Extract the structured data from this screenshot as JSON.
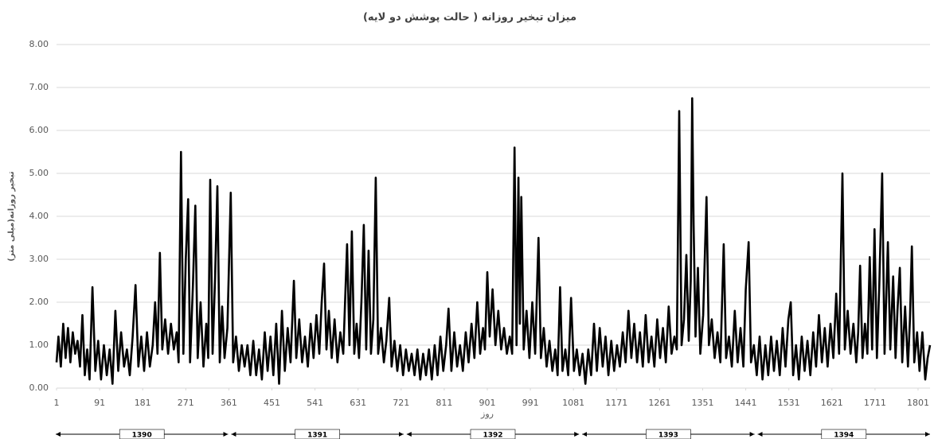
{
  "chart_data": {
    "type": "line",
    "title": "میزان تبخیر روزانه ( حالت پوشش دو لایه)",
    "x_label": "روز",
    "y_label": "تبخیر روزانه(میلی متر)",
    "years": [
      "1390",
      "1391",
      "1392",
      "1393",
      "1394"
    ],
    "color": "#000000",
    "grid": true,
    "xlim": [
      1,
      1826
    ],
    "ylim": [
      0,
      8
    ],
    "xticks": [
      1,
      91,
      181,
      271,
      361,
      451,
      541,
      631,
      721,
      811,
      901,
      991,
      1081,
      1171,
      1261,
      1351,
      1441,
      1531,
      1621,
      1711,
      1801
    ],
    "yticks": [
      {
        "value": 0,
        "label": "0.00"
      },
      {
        "value": 1,
        "label": "1.00"
      },
      {
        "value": 2,
        "label": "2.00"
      },
      {
        "value": 3,
        "label": "3.00"
      },
      {
        "value": 4,
        "label": "4.00"
      },
      {
        "value": 5,
        "label": "5.00"
      },
      {
        "value": 6,
        "label": "6.00"
      },
      {
        "value": 7,
        "label": "7.00"
      },
      {
        "value": 8,
        "label": "8.00"
      }
    ],
    "x": [
      1,
      5,
      10,
      15,
      20,
      25,
      30,
      35,
      40,
      45,
      50,
      55,
      60,
      65,
      70,
      76,
      82,
      88,
      94,
      100,
      106,
      112,
      118,
      124,
      130,
      136,
      142,
      148,
      154,
      160,
      166,
      172,
      178,
      184,
      190,
      196,
      202,
      207,
      212,
      217,
      222,
      228,
      234,
      240,
      246,
      252,
      256,
      261,
      266,
      271,
      276,
      280,
      286,
      291,
      296,
      302,
      308,
      314,
      318,
      322,
      327,
      332,
      337,
      342,
      347,
      352,
      358,
      365,
      370,
      376,
      382,
      388,
      394,
      400,
      406,
      412,
      418,
      424,
      430,
      436,
      442,
      448,
      454,
      460,
      466,
      472,
      478,
      484,
      490,
      497,
      502,
      508,
      514,
      520,
      526,
      532,
      538,
      544,
      550,
      555,
      560,
      565,
      570,
      576,
      582,
      588,
      594,
      600,
      608,
      613,
      618,
      623,
      628,
      633,
      638,
      643,
      648,
      653,
      658,
      663,
      668,
      673,
      679,
      685,
      690,
      696,
      701,
      707,
      713,
      719,
      725,
      731,
      737,
      743,
      749,
      755,
      761,
      767,
      773,
      779,
      785,
      791,
      797,
      803,
      809,
      815,
      820,
      826,
      832,
      838,
      844,
      850,
      856,
      862,
      868,
      874,
      880,
      886,
      892,
      896,
      901,
      906,
      912,
      918,
      924,
      930,
      936,
      942,
      948,
      953,
      958,
      962,
      966,
      969,
      972,
      977,
      983,
      989,
      995,
      1001,
      1008,
      1013,
      1019,
      1025,
      1031,
      1037,
      1043,
      1048,
      1053,
      1058,
      1064,
      1070,
      1076,
      1082,
      1088,
      1094,
      1100,
      1106,
      1112,
      1118,
      1124,
      1130,
      1136,
      1142,
      1148,
      1154,
      1160,
      1166,
      1172,
      1178,
      1184,
      1190,
      1196,
      1202,
      1208,
      1214,
      1220,
      1226,
      1232,
      1238,
      1244,
      1250,
      1256,
      1262,
      1268,
      1274,
      1280,
      1286,
      1292,
      1297,
      1302,
      1307,
      1312,
      1317,
      1322,
      1326,
      1329,
      1332,
      1336,
      1341,
      1346,
      1352,
      1359,
      1364,
      1370,
      1376,
      1382,
      1388,
      1395,
      1400,
      1406,
      1412,
      1418,
      1424,
      1430,
      1436,
      1441,
      1447,
      1452,
      1458,
      1464,
      1470,
      1476,
      1482,
      1488,
      1494,
      1500,
      1506,
      1512,
      1518,
      1524,
      1530,
      1535,
      1540,
      1546,
      1552,
      1558,
      1564,
      1570,
      1576,
      1582,
      1588,
      1594,
      1600,
      1606,
      1612,
      1618,
      1624,
      1630,
      1636,
      1643,
      1648,
      1654,
      1660,
      1666,
      1672,
      1676,
      1680,
      1685,
      1690,
      1695,
      1700,
      1705,
      1710,
      1715,
      1720,
      1726,
      1731,
      1738,
      1743,
      1749,
      1754,
      1758,
      1763,
      1768,
      1774,
      1780,
      1784,
      1788,
      1793,
      1799,
      1804,
      1810,
      1816,
      1821,
      1826
    ],
    "values": [
      0.6,
      1.2,
      0.5,
      1.5,
      0.7,
      1.4,
      0.6,
      1.3,
      0.8,
      1.1,
      0.5,
      1.7,
      0.3,
      0.9,
      0.2,
      2.35,
      0.4,
      1.1,
      0.2,
      1.0,
      0.3,
      0.9,
      0.1,
      1.8,
      0.4,
      1.3,
      0.5,
      0.9,
      0.3,
      1.2,
      2.4,
      0.5,
      1.2,
      0.4,
      1.3,
      0.5,
      1.0,
      2.0,
      0.8,
      3.15,
      0.9,
      1.6,
      0.8,
      1.5,
      0.9,
      1.3,
      0.6,
      5.5,
      0.8,
      3.0,
      4.4,
      0.6,
      2.4,
      4.25,
      0.7,
      2.0,
      0.5,
      1.5,
      0.7,
      4.85,
      0.8,
      2.5,
      4.7,
      0.6,
      1.9,
      0.7,
      1.4,
      4.55,
      0.6,
      1.2,
      0.4,
      1.0,
      0.5,
      1.0,
      0.3,
      1.1,
      0.3,
      0.9,
      0.2,
      1.3,
      0.4,
      1.2,
      0.3,
      1.5,
      0.1,
      1.8,
      0.4,
      1.4,
      0.6,
      2.5,
      0.7,
      1.6,
      0.6,
      1.2,
      0.5,
      1.5,
      0.7,
      1.7,
      0.8,
      2.0,
      2.9,
      0.9,
      1.8,
      0.7,
      1.6,
      0.6,
      1.3,
      0.8,
      3.35,
      1.0,
      3.65,
      0.8,
      1.5,
      0.7,
      2.0,
      3.8,
      0.9,
      3.2,
      0.8,
      1.6,
      4.9,
      0.8,
      1.4,
      0.6,
      1.1,
      2.1,
      0.5,
      1.1,
      0.4,
      1.0,
      0.3,
      0.9,
      0.4,
      0.8,
      0.3,
      0.9,
      0.2,
      0.8,
      0.3,
      0.9,
      0.2,
      1.0,
      0.3,
      1.2,
      0.4,
      1.0,
      1.85,
      0.4,
      1.3,
      0.5,
      1.0,
      0.4,
      1.3,
      0.6,
      1.5,
      0.7,
      2.0,
      0.8,
      1.4,
      0.9,
      2.7,
      1.2,
      2.3,
      1.0,
      1.8,
      0.9,
      1.4,
      0.8,
      1.2,
      0.8,
      5.6,
      1.0,
      4.9,
      1.5,
      4.45,
      0.9,
      1.8,
      0.7,
      2.0,
      0.8,
      3.5,
      0.7,
      1.4,
      0.5,
      1.1,
      0.4,
      0.9,
      0.3,
      2.35,
      0.4,
      0.9,
      0.3,
      2.1,
      0.4,
      0.9,
      0.3,
      0.8,
      0.1,
      0.9,
      0.3,
      1.5,
      0.4,
      1.4,
      0.5,
      1.2,
      0.3,
      1.1,
      0.4,
      1.0,
      0.5,
      1.3,
      0.6,
      1.8,
      0.7,
      1.5,
      0.6,
      1.3,
      0.5,
      1.7,
      0.6,
      1.2,
      0.5,
      1.6,
      0.7,
      1.4,
      0.6,
      1.9,
      0.8,
      1.2,
      0.9,
      6.45,
      1.0,
      1.6,
      3.1,
      1.1,
      2.5,
      6.75,
      3.8,
      1.2,
      2.8,
      0.8,
      1.7,
      4.45,
      1.0,
      1.6,
      0.7,
      1.3,
      0.6,
      3.35,
      0.7,
      1.2,
      0.5,
      1.8,
      0.6,
      1.4,
      0.5,
      2.3,
      3.4,
      0.6,
      1.0,
      0.3,
      1.2,
      0.2,
      1.0,
      0.3,
      1.2,
      0.4,
      1.1,
      0.3,
      1.4,
      0.5,
      1.6,
      2.0,
      0.3,
      1.0,
      0.2,
      1.2,
      0.4,
      1.1,
      0.3,
      1.3,
      0.5,
      1.7,
      0.6,
      1.4,
      0.5,
      1.5,
      0.7,
      2.2,
      0.8,
      5.0,
      0.9,
      1.8,
      0.8,
      1.5,
      0.6,
      1.3,
      2.85,
      0.7,
      1.5,
      0.8,
      3.05,
      0.9,
      3.7,
      0.7,
      2.4,
      5.0,
      0.8,
      3.4,
      0.9,
      2.6,
      0.7,
      1.8,
      2.8,
      0.6,
      1.9,
      0.5,
      1.6,
      3.3,
      0.6,
      1.3,
      0.4,
      1.3,
      0.2,
      0.7,
      1.0
    ]
  }
}
